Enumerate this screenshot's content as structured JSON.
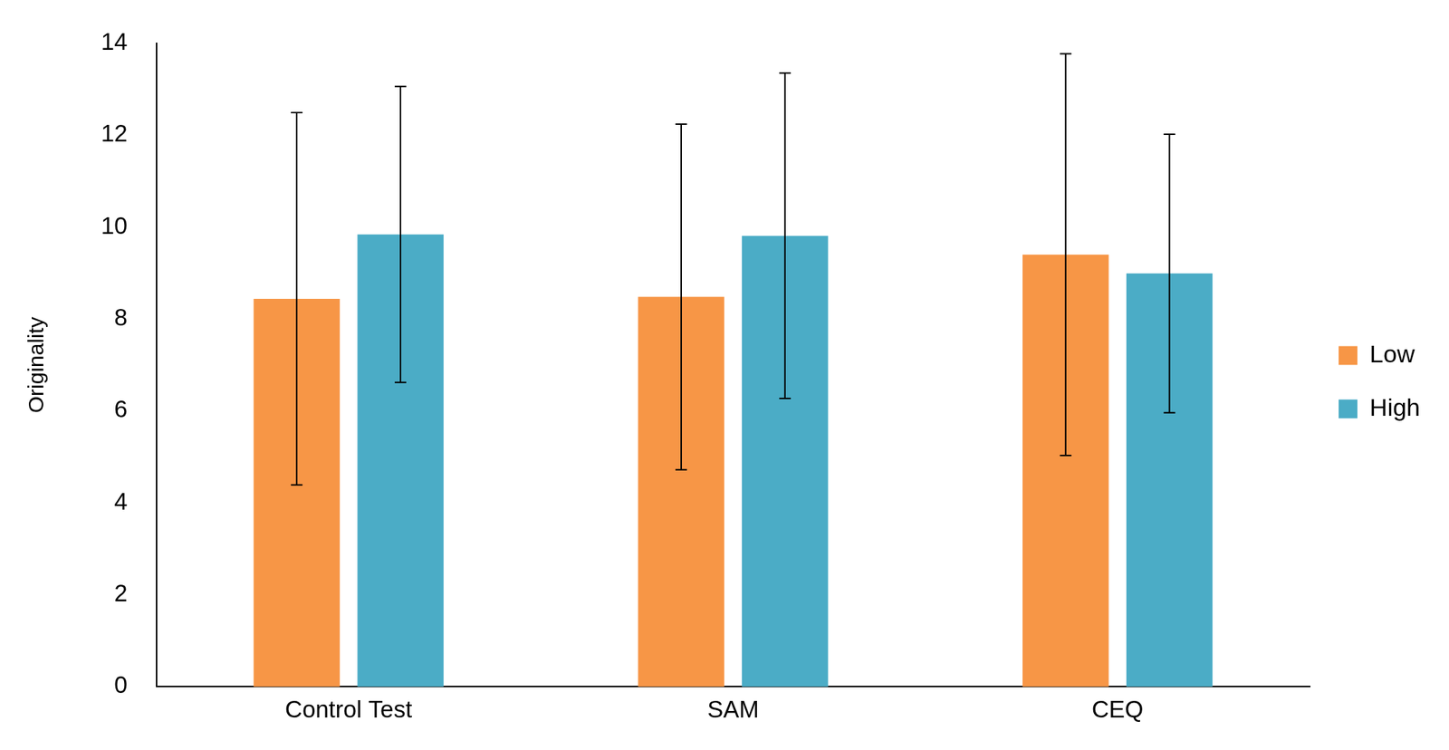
{
  "chart_data": {
    "type": "bar",
    "y_label": "Originality",
    "categories": [
      "Control Test",
      "SAM",
      "CEQ"
    ],
    "series": [
      {
        "name": "Low",
        "color": "#f79646",
        "values": [
          8.44,
          8.48,
          9.4
        ],
        "errors": [
          4.05,
          3.76,
          4.37
        ]
      },
      {
        "name": "High",
        "color": "#4bacc6",
        "values": [
          9.84,
          9.81,
          8.99
        ],
        "errors": [
          3.22,
          3.54,
          3.03
        ]
      }
    ],
    "ylim": [
      0,
      14
    ],
    "yticks": [
      0,
      2,
      4,
      6,
      8,
      10,
      12,
      14
    ],
    "grid": false,
    "legend": "right"
  }
}
